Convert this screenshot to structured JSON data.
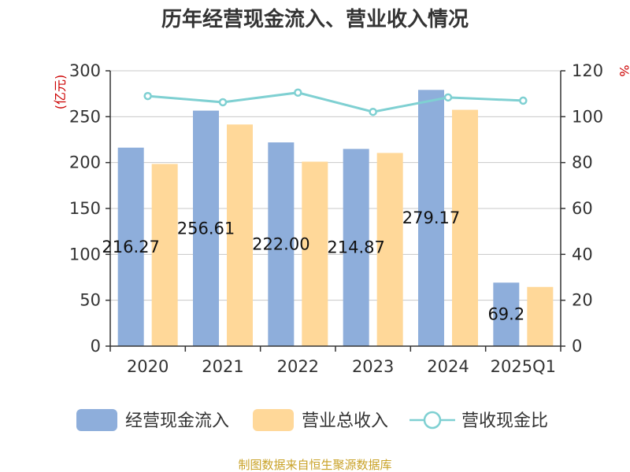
{
  "chart_data": {
    "type": "bar",
    "title": "历年经营现金流入、营业收入情况",
    "categories": [
      "2020",
      "2021",
      "2022",
      "2023",
      "2024",
      "2025Q1"
    ],
    "y_left": {
      "unit": "(亿元)",
      "ticks": [
        0,
        50,
        100,
        150,
        200,
        250,
        300
      ],
      "range": [
        0,
        300
      ]
    },
    "y_right": {
      "unit": "%",
      "ticks": [
        0,
        20,
        40,
        60,
        80,
        100,
        120
      ],
      "range": [
        0,
        120
      ]
    },
    "series": [
      {
        "name": "经营现金流入",
        "type": "bar",
        "axis": "left",
        "color": "#8eaedb",
        "values": [
          216.27,
          256.61,
          222.0,
          214.87,
          279.17,
          69.2
        ],
        "labels": [
          "216.27",
          "256.61",
          "222.00",
          "214.87",
          "279.17",
          "69.2"
        ]
      },
      {
        "name": "营业总收入",
        "type": "bar",
        "axis": "left",
        "color": "#ffd899",
        "values": [
          198.5,
          241.5,
          201.0,
          210.5,
          257.5,
          64.5
        ]
      },
      {
        "name": "营收现金比",
        "type": "line",
        "axis": "right",
        "color": "#7fd0d2",
        "values": [
          109.0,
          106.3,
          110.5,
          102.1,
          108.4,
          107.0
        ]
      }
    ],
    "grid": true,
    "legend_position": "bottom"
  },
  "source_note": "制图数据来自恒生聚源数据库"
}
